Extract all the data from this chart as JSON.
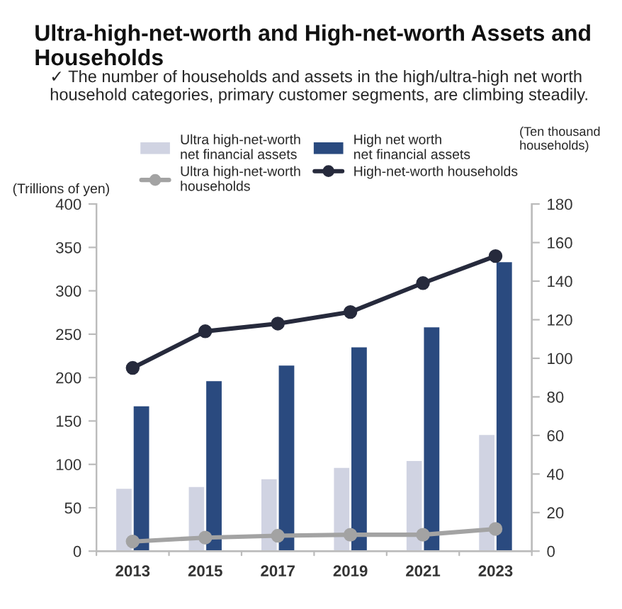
{
  "chart_data": {
    "type": "bar",
    "title": "Ultra-high-net-worth and High-net-worth Assets and Households",
    "subtitle": "✓ The number of households and assets in the high/ultra-high net worth household categories, primary customer segments, are climbing steadily.",
    "ylabel": "(Trillions of yen)",
    "y2label": "(Ten thousand households)",
    "categories": [
      "2013",
      "2015",
      "2017",
      "2019",
      "2021",
      "2023"
    ],
    "series": [
      {
        "name": "Ultra high-net-worth\nnet financial assets",
        "color": "#d0d3e2",
        "values": [
          73,
          75,
          84,
          97,
          105,
          135
        ]
      },
      {
        "name": "Ultra high-net-worth\nhouseholds",
        "type": "line",
        "axis": "y2",
        "color": "#a3a3a3",
        "values": [
          5,
          7,
          8,
          8.5,
          8.5,
          11.5
        ]
      },
      {
        "name": "High net worth\nnet financial assets",
        "color": "#2a4a7f",
        "values": [
          168,
          197,
          215,
          236,
          259,
          334
        ]
      },
      {
        "name": "High-net-worth households",
        "type": "line",
        "axis": "y2",
        "color": "#262a3c",
        "values": [
          95,
          114,
          118,
          124,
          139,
          153
        ]
      }
    ],
    "ylim": [
      0,
      400
    ],
    "yticks": [
      0,
      50,
      100,
      150,
      200,
      250,
      300,
      350,
      400
    ],
    "y2lim": [
      0,
      180
    ],
    "y2ticks": [
      0,
      20,
      40,
      60,
      80,
      100,
      120,
      140,
      160,
      180
    ],
    "marker": "circle",
    "line_style": "solid",
    "grid": false,
    "legend": "top"
  }
}
